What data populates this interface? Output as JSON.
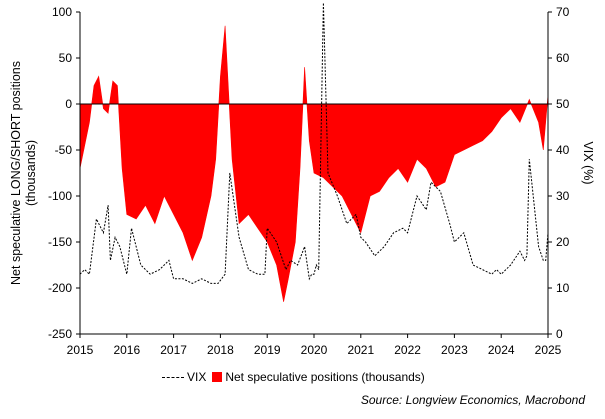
{
  "chart_data": {
    "type": "area",
    "title": "",
    "ylabel_left": "Net speculative LONG/SHORT positions (thousands)",
    "ylabel_left_lines": [
      "Net speculative LONG/SHORT positions",
      "(thousands)"
    ],
    "ylabel_right": "VIX (%)",
    "xlabel": "",
    "x_ticks": [
      "2015",
      "2016",
      "2017",
      "2018",
      "2019",
      "2020",
      "2021",
      "2022",
      "2023",
      "2024",
      "2025"
    ],
    "x_range": [
      2015.0,
      2025.0
    ],
    "ylim_left": [
      -250,
      100
    ],
    "ylim_right": [
      0,
      70
    ],
    "y_ticks_left": [
      100,
      50,
      0,
      -50,
      -100,
      -150,
      -200,
      -250
    ],
    "y_ticks_right": [
      70,
      60,
      50,
      40,
      30,
      20,
      10,
      0
    ],
    "grid": false,
    "legend_position": "bottom",
    "series": [
      {
        "name": "Net speculative positions (thousands)",
        "axis": "left",
        "style": "area",
        "color": "#ff0000",
        "x": [
          2015.0,
          2015.1,
          2015.2,
          2015.3,
          2015.4,
          2015.5,
          2015.6,
          2015.7,
          2015.8,
          2015.9,
          2016.0,
          2016.2,
          2016.4,
          2016.6,
          2016.8,
          2017.0,
          2017.2,
          2017.4,
          2017.6,
          2017.8,
          2017.9,
          2018.0,
          2018.1,
          2018.25,
          2018.4,
          2018.6,
          2018.8,
          2019.0,
          2019.2,
          2019.35,
          2019.45,
          2019.6,
          2019.7,
          2019.8,
          2019.9,
          2020.0,
          2020.2,
          2020.4,
          2020.6,
          2020.8,
          2021.0,
          2021.2,
          2021.4,
          2021.6,
          2021.8,
          2022.0,
          2022.2,
          2022.4,
          2022.6,
          2022.8,
          2023.0,
          2023.2,
          2023.4,
          2023.6,
          2023.8,
          2024.0,
          2024.2,
          2024.4,
          2024.6,
          2024.8,
          2024.9,
          2025.0
        ],
        "values": [
          -70,
          -45,
          -20,
          20,
          30,
          -5,
          -10,
          25,
          20,
          -70,
          -120,
          -125,
          -110,
          -130,
          -100,
          -120,
          -140,
          -170,
          -145,
          -100,
          -60,
          30,
          85,
          -60,
          -130,
          -120,
          -135,
          -150,
          -175,
          -215,
          -190,
          -150,
          -70,
          40,
          -40,
          -75,
          -80,
          -90,
          -100,
          -120,
          -140,
          -100,
          -95,
          -80,
          -70,
          -85,
          -60,
          -70,
          -90,
          -85,
          -55,
          -50,
          -45,
          -40,
          -30,
          -15,
          -5,
          -20,
          5,
          -20,
          -50,
          10
        ]
      },
      {
        "name": "VIX",
        "axis": "right",
        "style": "dashed-line",
        "color": "#000000",
        "x": [
          2015.0,
          2015.1,
          2015.2,
          2015.35,
          2015.5,
          2015.6,
          2015.65,
          2015.75,
          2015.85,
          2016.0,
          2016.1,
          2016.3,
          2016.5,
          2016.7,
          2016.9,
          2017.0,
          2017.2,
          2017.4,
          2017.6,
          2017.8,
          2017.95,
          2018.1,
          2018.2,
          2018.4,
          2018.6,
          2018.8,
          2018.95,
          2019.0,
          2019.2,
          2019.4,
          2019.5,
          2019.65,
          2019.8,
          2019.9,
          2019.95,
          2020.0,
          2020.05,
          2020.1,
          2020.2,
          2020.3,
          2020.5,
          2020.7,
          2020.9,
          2021.0,
          2021.1,
          2021.3,
          2021.5,
          2021.7,
          2021.9,
          2022.0,
          2022.1,
          2022.2,
          2022.4,
          2022.5,
          2022.7,
          2022.9,
          2023.0,
          2023.2,
          2023.4,
          2023.6,
          2023.8,
          2023.9,
          2024.0,
          2024.2,
          2024.4,
          2024.5,
          2024.55,
          2024.6,
          2024.8,
          2024.9,
          2024.95,
          2025.0
        ],
        "values": [
          13,
          14,
          13,
          25,
          22,
          28,
          16,
          21,
          19,
          13,
          23,
          15,
          13,
          14,
          16,
          12,
          12,
          11,
          12,
          11,
          11,
          13,
          35,
          21,
          14,
          13,
          13,
          23,
          20,
          14,
          16,
          15,
          19,
          12,
          13,
          13,
          15,
          14,
          72,
          35,
          30,
          24,
          26,
          21,
          20,
          17,
          19,
          22,
          23,
          22,
          26,
          30,
          27,
          33,
          31,
          24,
          20,
          22,
          15,
          14,
          13,
          14,
          13,
          15,
          18,
          16,
          17,
          38,
          19,
          16,
          16,
          22
        ]
      }
    ],
    "legend": [
      "VIX",
      "Net speculative positions (thousands)"
    ],
    "source": "Source: Longview Economics, Macrobond"
  }
}
